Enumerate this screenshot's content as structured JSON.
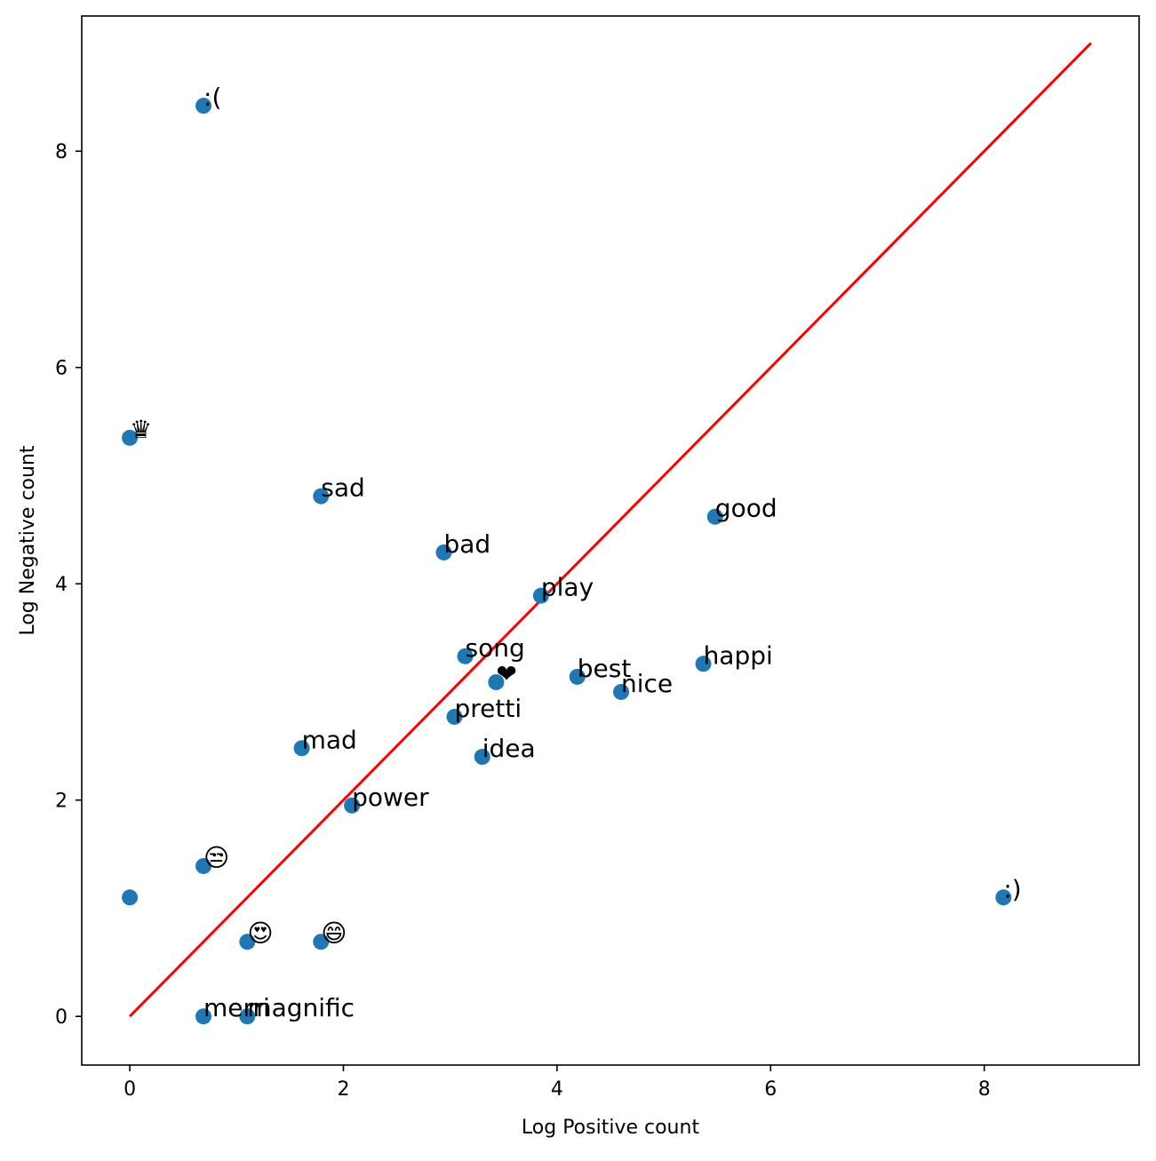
{
  "chart_data": {
    "type": "scatter",
    "xlabel": "Log Positive count",
    "ylabel": "Log Negative count",
    "xlim": [
      -0.45,
      9.45
    ],
    "ylim": [
      -0.45,
      9.25
    ],
    "xticks": [
      0,
      2,
      4,
      6,
      8
    ],
    "yticks": [
      0,
      2,
      4,
      6,
      8
    ],
    "grid": false,
    "point_color": "#1f77b4",
    "line_color": "#ff0000",
    "reference_line": {
      "x": [
        0,
        9
      ],
      "y": [
        0,
        9
      ]
    },
    "points": [
      {
        "label": ":(",
        "x": 0.69,
        "y": 8.42
      },
      {
        "label": "♛",
        "x": 0.0,
        "y": 5.35
      },
      {
        "label": "sad",
        "x": 1.79,
        "y": 4.81
      },
      {
        "label": "bad",
        "x": 2.94,
        "y": 4.29
      },
      {
        "label": "good",
        "x": 5.48,
        "y": 4.62
      },
      {
        "label": "play",
        "x": 3.85,
        "y": 3.89
      },
      {
        "label": "song",
        "x": 3.14,
        "y": 3.33
      },
      {
        "label": "❤",
        "x": 3.43,
        "y": 3.09
      },
      {
        "label": "best",
        "x": 4.19,
        "y": 3.14
      },
      {
        "label": "nice",
        "x": 4.6,
        "y": 3.0
      },
      {
        "label": "happi",
        "x": 5.37,
        "y": 3.26
      },
      {
        "label": "pretti",
        "x": 3.04,
        "y": 2.77
      },
      {
        "label": "mad",
        "x": 1.61,
        "y": 2.48
      },
      {
        "label": "idea",
        "x": 3.3,
        "y": 2.4
      },
      {
        "label": "power",
        "x": 2.08,
        "y": 1.95
      },
      {
        "label": "😒",
        "x": 0.69,
        "y": 1.39
      },
      {
        "label": "",
        "x": 0.0,
        "y": 1.1
      },
      {
        "label": ":)",
        "x": 8.18,
        "y": 1.1
      },
      {
        "label": "😍",
        "x": 1.1,
        "y": 0.69
      },
      {
        "label": "😄",
        "x": 1.79,
        "y": 0.69
      },
      {
        "label": "merri",
        "x": 0.69,
        "y": 0.0
      },
      {
        "label": "magnific",
        "x": 1.1,
        "y": 0.0
      }
    ]
  }
}
